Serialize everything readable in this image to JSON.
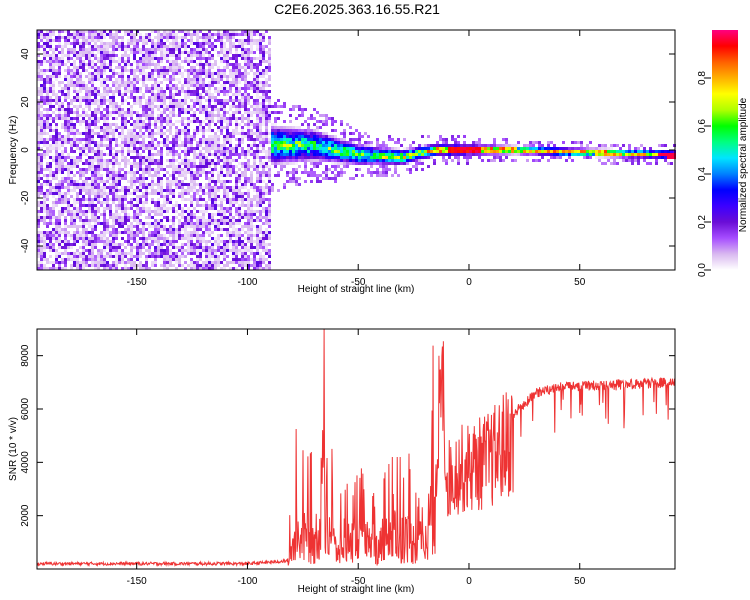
{
  "title": "C2E6.2025.363.16.55.R21",
  "chart_data": [
    {
      "type": "heatmap",
      "xlabel": "Height of straight line (km)",
      "ylabel": "Frequency (Hz)",
      "xlim": [
        -195,
        93
      ],
      "ylim": [
        -50,
        50
      ],
      "xticks": [
        -150,
        -100,
        -50,
        0,
        50
      ],
      "xtick_labels": [
        "-150",
        "-100",
        "-50",
        "0",
        "50"
      ],
      "yticks": [
        -40,
        -20,
        0,
        20,
        40
      ],
      "ytick_labels": [
        "-40",
        "-20",
        "0",
        "20",
        "40"
      ],
      "colorbar": {
        "label": "Normalized spectral amplitude",
        "range": [
          0,
          1
        ],
        "ticks": [
          0,
          0.2,
          0.4,
          0.6,
          0.8
        ],
        "tick_labels": [
          "0.0",
          "0.2",
          "0.4",
          "0.6",
          "0.8"
        ],
        "colormap": [
          "#ffffff",
          "#d9b8f0",
          "#a64dff",
          "#6a0dd6",
          "#3c00ff",
          "#0000ff",
          "#0080ff",
          "#00e5ff",
          "#00ff80",
          "#00ff00",
          "#b0ff00",
          "#ffff00",
          "#ffb000",
          "#ff6000",
          "#ff0000",
          "#ff0080"
        ]
      },
      "regions": [
        {
          "name": "noise",
          "x_range": [
            -195,
            -89
          ],
          "freq_range": [
            -50,
            50
          ],
          "amplitude": 0.12
        },
        {
          "name": "signal-band",
          "x_range": [
            -89,
            93
          ],
          "center_freq": [
            [
              -89,
              2
            ],
            [
              -70,
              2
            ],
            [
              -50,
              -2
            ],
            [
              -30,
              -3
            ],
            [
              -15,
              0
            ],
            [
              0,
              0
            ],
            [
              20,
              0
            ],
            [
              50,
              -1
            ],
            [
              93,
              -2
            ]
          ],
          "half_width_hz": [
            [
              -89,
              9
            ],
            [
              -60,
              6
            ],
            [
              -40,
              4
            ],
            [
              -15,
              3
            ],
            [
              20,
              2
            ],
            [
              93,
              2
            ]
          ],
          "peak_amplitude": 0.98
        }
      ]
    },
    {
      "type": "line",
      "xlabel": "Height of straight line (km)",
      "ylabel": "SNR (10 * v/v)",
      "xlim": [
        -195,
        93
      ],
      "ylim": [
        0,
        9000
      ],
      "xticks": [
        -150,
        -100,
        -50,
        0,
        50
      ],
      "xtick_labels": [
        "-150",
        "-100",
        "-50",
        "0",
        "50"
      ],
      "yticks": [
        2000,
        4000,
        6000,
        8000
      ],
      "ytick_labels": [
        "2000",
        "4000",
        "6000",
        "8000"
      ],
      "line_color": "#ee3333",
      "envelope": [
        {
          "x": -195,
          "y": 200
        },
        {
          "x": -100,
          "y": 200
        },
        {
          "x": -82,
          "y": 300
        },
        {
          "x": -78,
          "y": 2000
        },
        {
          "x": -70,
          "y": 1500
        },
        {
          "x": -65,
          "y": 3500
        },
        {
          "x": -60,
          "y": 1000
        },
        {
          "x": -50,
          "y": 1500
        },
        {
          "x": -45,
          "y": 1000
        },
        {
          "x": -30,
          "y": 2000
        },
        {
          "x": -25,
          "y": 1500
        },
        {
          "x": -20,
          "y": 1200
        },
        {
          "x": -15,
          "y": 5000
        },
        {
          "x": -12,
          "y": 8900
        },
        {
          "x": -10,
          "y": 4000
        },
        {
          "x": -5,
          "y": 4500
        },
        {
          "x": 0,
          "y": 4600
        },
        {
          "x": 10,
          "y": 5000
        },
        {
          "x": 20,
          "y": 6000
        },
        {
          "x": 30,
          "y": 6800
        },
        {
          "x": 40,
          "y": 7000
        },
        {
          "x": 60,
          "y": 7100
        },
        {
          "x": 93,
          "y": 7200
        }
      ]
    }
  ]
}
